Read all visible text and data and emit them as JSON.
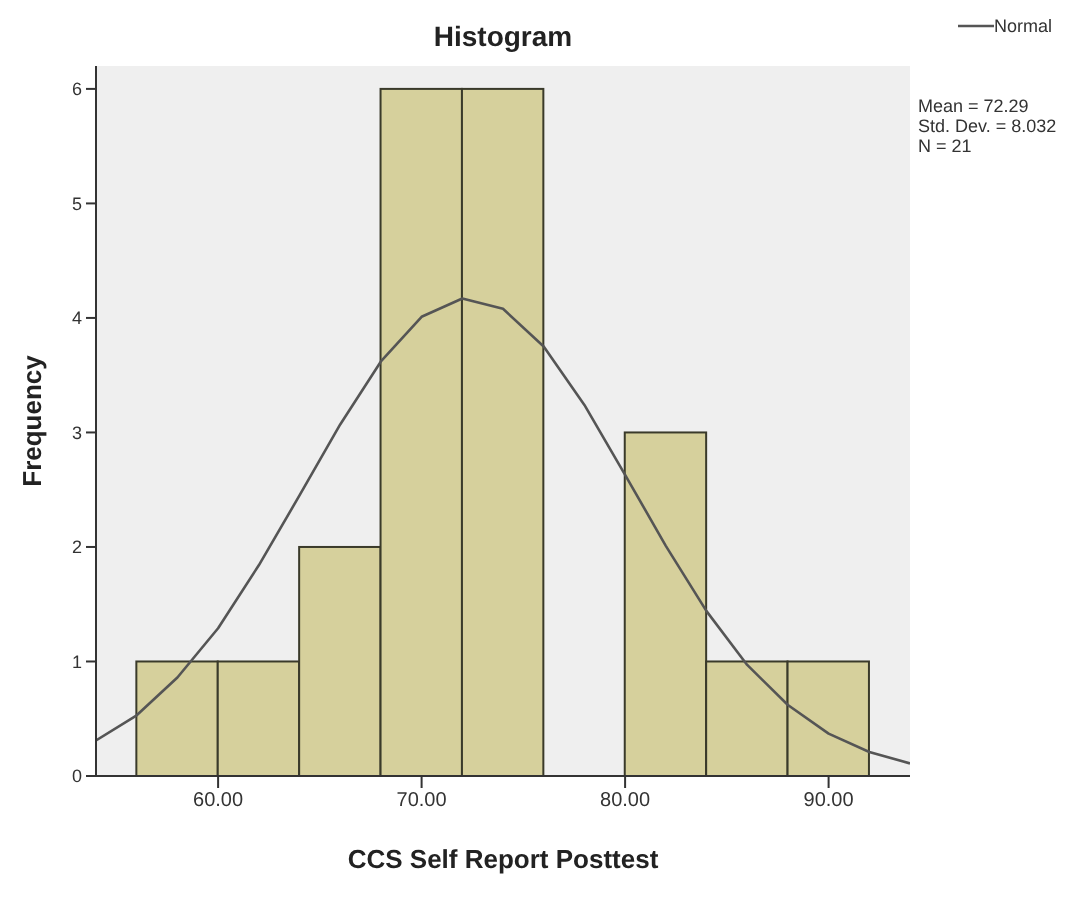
{
  "chart_data": {
    "type": "histogram",
    "title": "Histogram",
    "xlabel": "CCS Self Report Posttest",
    "ylabel": "Frequency",
    "bins": [
      56,
      60,
      64,
      68,
      72,
      76,
      80,
      84,
      88,
      92
    ],
    "values": [
      1,
      1,
      2,
      6,
      6,
      0,
      3,
      1,
      1
    ],
    "color": "#d6d09c",
    "series": [
      {
        "name": "Normal",
        "type": "line",
        "color": "#555555",
        "x": [
          54,
          56,
          58,
          60,
          62,
          64,
          66,
          68,
          70,
          72,
          74,
          76,
          78,
          80,
          82,
          84,
          86,
          88,
          90,
          92,
          94
        ],
        "values": [
          0.31,
          0.53,
          0.86,
          1.29,
          1.84,
          2.45,
          3.07,
          3.62,
          4.01,
          4.17,
          4.08,
          3.75,
          3.24,
          2.63,
          2.01,
          1.44,
          0.97,
          0.62,
          0.37,
          0.21,
          0.11
        ]
      }
    ],
    "xlim": [
      54,
      94
    ],
    "xticks": [
      {
        "value": 60,
        "label": "60.00"
      },
      {
        "value": 70,
        "label": "70.00"
      },
      {
        "value": 80,
        "label": "80.00"
      },
      {
        "value": 90,
        "label": "90.00"
      }
    ],
    "ylim": [
      0,
      6.2
    ],
    "yticks": [
      0,
      1,
      2,
      3,
      4,
      5,
      6
    ],
    "legend": "top right",
    "grid": false,
    "annotations": [
      "Mean = 72.29",
      "Std. Dev. = 8.032",
      "N = 21"
    ]
  }
}
